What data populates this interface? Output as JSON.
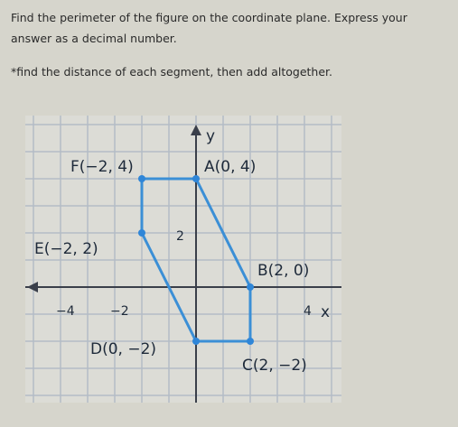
{
  "instructions": [
    "Find the perimeter of the figure on the coordinate plane. Express your",
    "answer as a decimal number."
  ],
  "hint": "*find the distance of each segment, then add altogether.",
  "graph": {
    "axis_labels": {
      "x": "x",
      "y": "y"
    },
    "tick_labels": {
      "x": [
        "−4",
        "−2",
        "4"
      ],
      "y": [
        "2"
      ]
    },
    "points": [
      {
        "label": "F(−2, 4)"
      },
      {
        "label": "A(0, 4)"
      },
      {
        "label": "E(−2, 2)"
      },
      {
        "label": "B(2, 0)"
      },
      {
        "label": "D(0, −2)"
      },
      {
        "label": "C(2, −2)"
      }
    ]
  }
}
